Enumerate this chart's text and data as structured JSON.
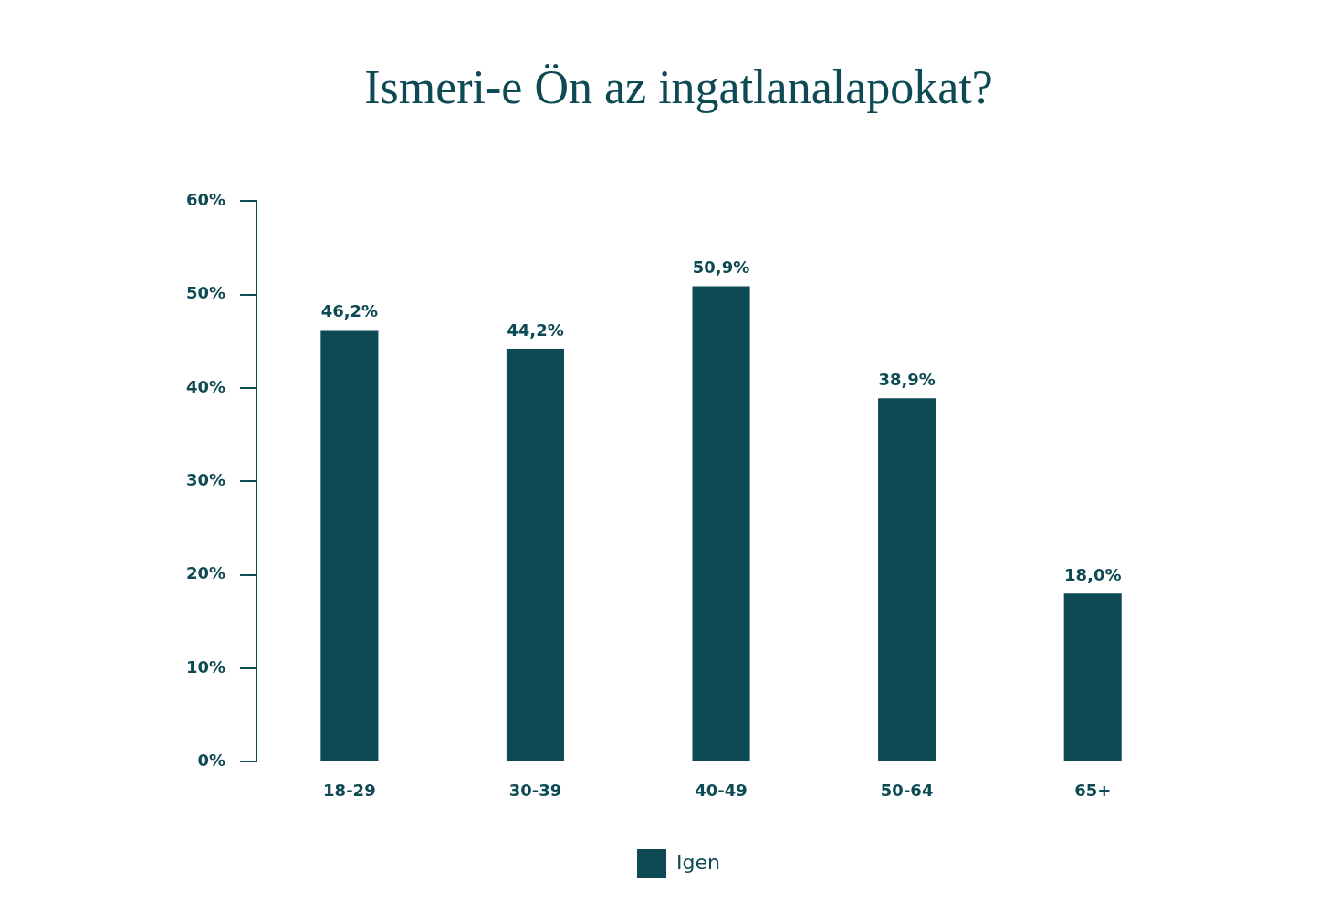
{
  "chart_data": {
    "type": "bar",
    "title": "Ismeri-e Ön az ingatlanalapokat?",
    "categories": [
      "18-29",
      "30-39",
      "40-49",
      "50-64",
      "65+"
    ],
    "series": [
      {
        "name": "Igen",
        "color": "#0d4a53",
        "values": [
          46.2,
          44.2,
          50.9,
          38.9,
          18.0
        ],
        "value_labels": [
          "46,2%",
          "44,2%",
          "50,9%",
          "38,9%",
          "18,0%"
        ]
      }
    ],
    "ylim": [
      0,
      60
    ],
    "yticks": [
      {
        "value": 0,
        "label": "0%"
      },
      {
        "value": 10,
        "label": "10%"
      },
      {
        "value": 20,
        "label": "20%"
      },
      {
        "value": 30,
        "label": "30%"
      },
      {
        "value": 40,
        "label": "40%"
      },
      {
        "value": 50,
        "label": "50%"
      },
      {
        "value": 60,
        "label": "60%"
      }
    ],
    "grid": false,
    "legend": "bottom"
  }
}
